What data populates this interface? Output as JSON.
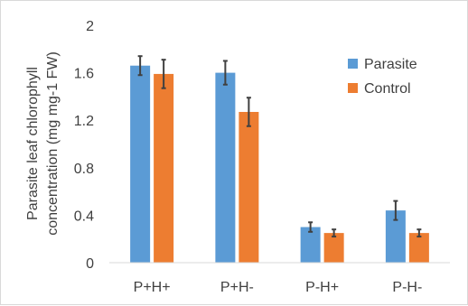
{
  "chart_data": {
    "type": "bar",
    "categories": [
      "P+H+",
      "P+H-",
      "P-H+",
      "P-H-"
    ],
    "series": [
      {
        "name": "Parasite",
        "color": "#5B9BD5",
        "values": [
          1.66,
          1.6,
          0.3,
          0.44
        ],
        "errors": [
          0.08,
          0.1,
          0.04,
          0.08
        ]
      },
      {
        "name": "Control",
        "color": "#ED7D31",
        "values": [
          1.59,
          1.27,
          0.25,
          0.25
        ],
        "errors": [
          0.12,
          0.12,
          0.03,
          0.03
        ]
      }
    ],
    "title": "",
    "xlabel": "",
    "ylabel": "Parasite leaf chlorophyll concentration (mg mg-1 FW)",
    "ylabel_lines": [
      "Parasite leaf chlorophyll",
      "concentration (mg mg-1 FW)"
    ],
    "ylim": [
      0,
      2
    ],
    "yticks": [
      0,
      0.4,
      0.8,
      1.2,
      1.6,
      2
    ],
    "ytick_labels": [
      "0",
      "0.4",
      "0.8",
      "1.2",
      "1.6",
      "2"
    ],
    "grid": false,
    "legend_position": "top-right",
    "error_bar_color": "#404040",
    "axis_color": "#d9d9d9"
  }
}
